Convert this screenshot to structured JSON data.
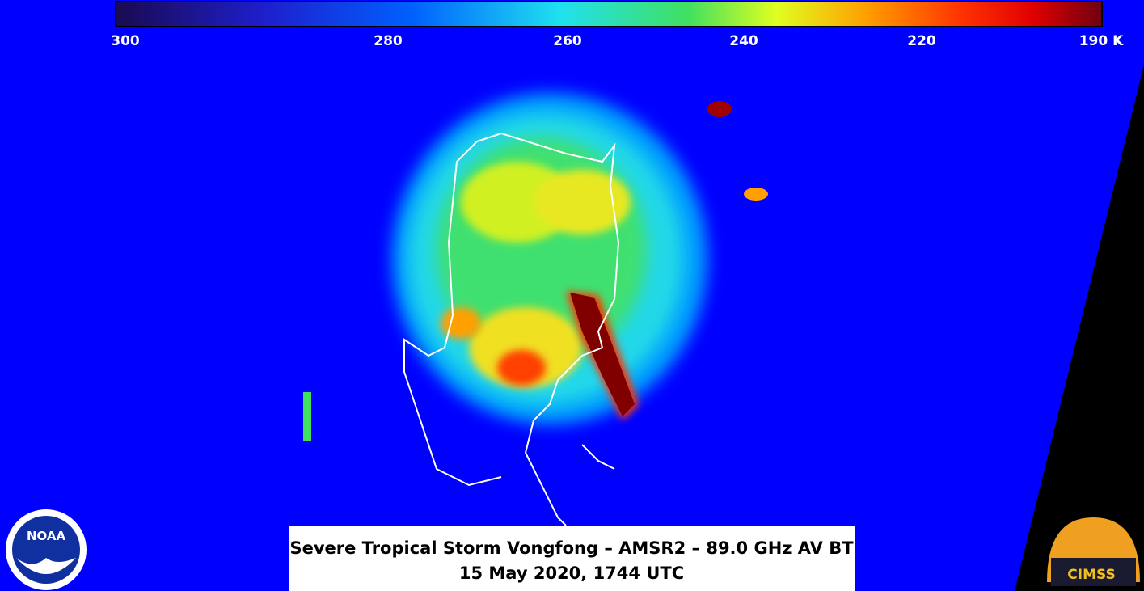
{
  "colorbar": {
    "labels": [
      "300",
      "280",
      "260",
      "240",
      "220",
      "190 K"
    ]
  },
  "caption": {
    "line1": "Severe Tropical Storm Vongfong – AMSR2 – 89.0 GHz AV BT",
    "line2": "15 May 2020, 1744 UTC"
  },
  "logos": {
    "left": "NOAA",
    "right": "CIMSS"
  }
}
